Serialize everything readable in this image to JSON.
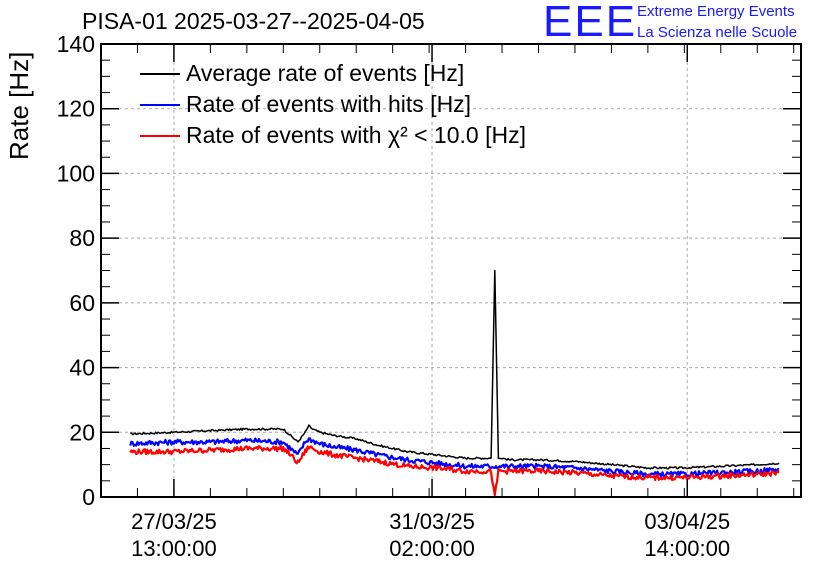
{
  "title": "PISA-01 2025-03-27--2025-04-05",
  "logo": {
    "text": "EEE",
    "line1": "Extreme Energy Events",
    "line2": "La Scienza nelle Scuole",
    "color": "#1a1aff"
  },
  "chart_data": {
    "type": "line",
    "title": "PISA-01 2025-03-27--2025-04-05",
    "xlabel": "",
    "ylabel": "Rate [Hz]",
    "ylim": [
      0,
      140
    ],
    "xlim_days": [
      -1.0,
      8.6
    ],
    "grid": true,
    "legend_position": "top-left",
    "y_ticks": [
      0,
      20,
      40,
      60,
      80,
      100,
      120,
      140
    ],
    "y_tick_labels": [
      "0",
      "20",
      "40",
      "60",
      "80",
      "100",
      "120",
      "140"
    ],
    "x_ticks": [
      {
        "day": 0.0,
        "line1": "27/03/25",
        "line2": "13:00:00"
      },
      {
        "day": 3.54,
        "line1": "31/03/25",
        "line2": "02:00:00"
      },
      {
        "day": 7.04,
        "line1": "03/04/25",
        "line2": "14:00:00"
      }
    ],
    "x_note": "x values are days since 27/03/25 13:00:00",
    "series": [
      {
        "name": "Average rate of events [Hz]",
        "legend": "Average rate of events [Hz]",
        "color": "#000000",
        "x": [
          -0.6,
          0.0,
          0.5,
          1.0,
          1.5,
          1.6,
          1.7,
          1.8,
          1.85,
          1.9,
          2.0,
          2.2,
          2.5,
          2.8,
          3.2,
          3.6,
          4.0,
          4.2,
          4.35,
          4.4,
          4.45,
          4.5,
          4.6,
          5.0,
          5.5,
          6.0,
          6.5,
          7.0,
          7.5,
          8.0,
          8.3
        ],
        "values": [
          19.5,
          20,
          20.5,
          21,
          21,
          19,
          17,
          20,
          22,
          21,
          20,
          19,
          18,
          16,
          14,
          13,
          12,
          12,
          12,
          70,
          12,
          12,
          11.5,
          11.5,
          11,
          10,
          9,
          9,
          9.5,
          10,
          10.5
        ]
      },
      {
        "name": "Rate of events with hits [Hz]",
        "legend": "Rate of events with hits [Hz]",
        "color": "#0000ff",
        "x": [
          -0.6,
          0.0,
          0.5,
          1.0,
          1.5,
          1.6,
          1.7,
          1.8,
          1.85,
          1.9,
          2.0,
          2.2,
          2.5,
          2.8,
          3.2,
          3.6,
          4.0,
          4.2,
          4.35,
          4.4,
          4.45,
          4.5,
          4.6,
          5.0,
          5.5,
          6.0,
          6.5,
          7.0,
          7.5,
          8.0,
          8.3
        ],
        "values": [
          16.5,
          17,
          17,
          17.5,
          17,
          15,
          13,
          17,
          18,
          17.5,
          16.5,
          15.5,
          14.5,
          13,
          11.5,
          10.5,
          9.5,
          9.5,
          9.5,
          9.5,
          9.5,
          9.5,
          9.5,
          9.5,
          9,
          8,
          7,
          7,
          7.5,
          8,
          8.5
        ]
      },
      {
        "name": "Rate of events with chi2 < 10.0 [Hz]",
        "legend": "Rate of events with χ² < 10.0 [Hz]",
        "color": "#ff0000",
        "x": [
          -0.6,
          0.0,
          0.5,
          1.0,
          1.5,
          1.6,
          1.7,
          1.8,
          1.85,
          1.9,
          2.0,
          2.2,
          2.5,
          2.8,
          3.2,
          3.6,
          4.0,
          4.2,
          4.35,
          4.4,
          4.45,
          4.5,
          4.6,
          5.0,
          5.5,
          6.0,
          6.5,
          7.0,
          7.5,
          8.0,
          8.3
        ],
        "values": [
          14,
          14,
          14.5,
          15,
          15,
          13,
          10.5,
          14,
          15.5,
          15,
          14,
          13,
          12,
          11,
          9.5,
          9,
          8,
          8,
          8,
          0,
          8,
          8,
          8,
          8,
          7.5,
          6.5,
          6,
          6,
          6.5,
          7,
          7.5
        ]
      }
    ]
  }
}
